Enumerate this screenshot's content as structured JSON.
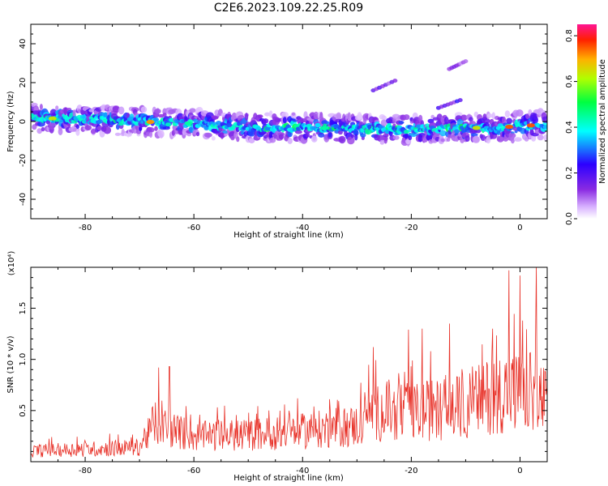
{
  "title": "C2E6.2023.109.22.25.R09",
  "colors": {
    "signal_red": "#e8332a",
    "background": "#ffffff",
    "axis": "#000000"
  },
  "chart_data": [
    {
      "type": "heatmap",
      "xlabel": "Height of straight line (km)",
      "ylabel": "Frequency (Hz)",
      "xlim": [
        -90,
        5
      ],
      "ylim": [
        -50,
        50
      ],
      "x_ticks": [
        -80,
        -60,
        -40,
        -20,
        0
      ],
      "y_ticks": [
        -40,
        -20,
        0,
        20,
        40
      ],
      "colorbar": {
        "label": "Normalized spectral amplitude",
        "range": [
          0,
          0.85
        ],
        "ticks": [
          "0.0",
          "0.2",
          "0.4",
          "0.6",
          "0.8"
        ],
        "colormap": [
          "#ffffff",
          "#d9b3ff",
          "#8a2be2",
          "#2c00ff",
          "#00ffff",
          "#00ff40",
          "#b0ff00",
          "#ffb000",
          "#ff2000",
          "#ff1493"
        ]
      },
      "ridge": {
        "points": [
          [
            -90,
            2
          ],
          [
            -80,
            1
          ],
          [
            -70,
            0
          ],
          [
            -60,
            -1
          ],
          [
            -50,
            -3
          ],
          [
            -40,
            -3
          ],
          [
            -30,
            -4
          ],
          [
            -20,
            -4
          ],
          [
            -10,
            -3.5
          ],
          [
            0,
            -2.5
          ],
          [
            4,
            -1.5
          ]
        ],
        "peaks": [
          [
            -86,
            0.7
          ],
          [
            -68,
            0.8
          ],
          [
            -61,
            0.5
          ],
          [
            -36,
            0.5
          ],
          [
            -8,
            0.7
          ],
          [
            -2,
            0.85
          ],
          [
            2,
            0.85
          ]
        ]
      },
      "secondary_tracks": [
        {
          "x": [
            -27,
            -23
          ],
          "y": [
            16,
            21
          ],
          "level": 0.25
        },
        {
          "x": [
            -15,
            -11
          ],
          "y": [
            7,
            11
          ],
          "level": 0.3
        },
        {
          "x": [
            -13,
            -10
          ],
          "y": [
            27,
            31
          ],
          "level": 0.2
        }
      ]
    },
    {
      "type": "line",
      "xlabel": "Height of straight line (km)",
      "ylabel": "SNR (10 * v/v)",
      "ylabel_multiplier": "(x10⁴)",
      "xlim": [
        -90,
        5
      ],
      "ylim": [
        0,
        1.9
      ],
      "x_ticks": [
        -80,
        -60,
        -40,
        -20,
        0
      ],
      "y_ticks": [
        0.5,
        1.0,
        1.5
      ],
      "series": [
        {
          "color": "#e8332a",
          "trend": {
            "x": [
              -90,
              -80,
              -70,
              -69,
              -66,
              -60,
              -50,
              -40,
              -30,
              -28,
              -20,
              -10,
              -5,
              -2,
              0,
              2,
              4,
              5
            ],
            "y": [
              0.12,
              0.14,
              0.16,
              0.28,
              0.4,
              0.28,
              0.3,
              0.34,
              0.4,
              0.55,
              0.55,
              0.62,
              0.75,
              0.8,
              0.75,
              0.78,
              0.7,
              0.65
            ]
          }
        }
      ],
      "peaks": [
        [
          -66.5,
          0.92
        ],
        [
          -64.5,
          0.93
        ],
        [
          -27,
          1.12
        ],
        [
          -20.5,
          1.29
        ],
        [
          -18,
          1.3
        ],
        [
          -13,
          1.35
        ],
        [
          -5,
          1.3
        ],
        [
          -2,
          1.87
        ],
        [
          0,
          1.82
        ],
        [
          3,
          1.92
        ]
      ]
    }
  ]
}
